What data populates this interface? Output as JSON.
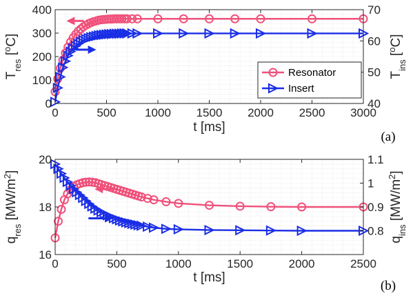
{
  "colors": {
    "resonator": "#f0507a",
    "insert": "#1a2ee6",
    "axis": "#262626",
    "grid": "#dcdcdc"
  },
  "chart_data": [
    {
      "id": "a",
      "type": "line",
      "panel_label": "(a)",
      "xlabel": "t [ms]",
      "ylabel_left": {
        "main": "T",
        "sub": "res",
        "unit": " [",
        "sup": "o",
        "end": "C]"
      },
      "ylabel_right": {
        "main": "T",
        "sub": "ins",
        "unit": " [",
        "sup": "o",
        "end": "C]"
      },
      "xlim": [
        0,
        3000
      ],
      "ylim_left": [
        0,
        400
      ],
      "ylim_right": [
        40,
        70
      ],
      "xticks": [
        "0",
        "500",
        "1000",
        "1500",
        "2000",
        "2500",
        "3000"
      ],
      "xtick_values": [
        0,
        500,
        1000,
        1500,
        2000,
        2500,
        3000
      ],
      "yticks_left": [
        "0",
        "100",
        "200",
        "300",
        "400"
      ],
      "ytick_values_left": [
        0,
        100,
        200,
        300,
        400
      ],
      "yticks_right": [
        "40",
        "50",
        "60",
        "70"
      ],
      "ytick_values_right": [
        40,
        50,
        60,
        70
      ],
      "grid": true,
      "legend": {
        "placement": "right",
        "entries": [
          "Resonator",
          "Insert"
        ]
      },
      "series": [
        {
          "name": "Resonator",
          "axis": "left",
          "marker": "circle",
          "x": [
            0,
            25,
            50,
            75,
            100,
            125,
            150,
            175,
            200,
            225,
            250,
            275,
            300,
            325,
            350,
            375,
            400,
            425,
            450,
            475,
            500,
            525,
            550,
            575,
            600,
            625,
            650,
            675,
            700,
            750,
            800,
            1000,
            1250,
            1500,
            1750,
            2000,
            2500,
            3000
          ],
          "y": [
            50,
            105,
            150,
            185,
            215,
            240,
            262,
            280,
            295,
            308,
            318,
            327,
            334,
            340,
            345,
            349,
            352,
            355,
            357,
            358,
            359,
            360,
            360,
            361,
            361,
            361,
            361,
            361,
            361,
            361,
            361,
            361,
            361,
            361,
            361,
            361,
            361,
            361
          ]
        },
        {
          "name": "Insert",
          "axis": "right",
          "marker": "triangle-right",
          "x": [
            0,
            25,
            50,
            75,
            100,
            125,
            150,
            175,
            200,
            225,
            250,
            275,
            300,
            325,
            350,
            375,
            400,
            425,
            450,
            475,
            500,
            525,
            550,
            575,
            600,
            625,
            650,
            675,
            700,
            750,
            800,
            1000,
            1250,
            1500,
            1750,
            2000,
            2500,
            3000
          ],
          "y": [
            40.5,
            45,
            48.5,
            51.5,
            53.5,
            55.3,
            56.6,
            57.6,
            58.4,
            59.1,
            59.7,
            60.2,
            60.6,
            60.9,
            61.2,
            61.4,
            61.6,
            61.8,
            61.9,
            62,
            62.1,
            62.2,
            62.2,
            62.3,
            62.3,
            62.3,
            62.4,
            62.4,
            62.4,
            62.4,
            62.4,
            62.4,
            62.4,
            62.4,
            62.4,
            62.4,
            62.4,
            62.4
          ]
        }
      ],
      "arrows": [
        {
          "series": "Resonator",
          "direction": "left",
          "x_from": 280,
          "x_to": 110,
          "y": 352,
          "axis": "left"
        },
        {
          "series": "Insert",
          "direction": "right",
          "x_from": 200,
          "x_to": 400,
          "y": 57.2,
          "axis": "right"
        }
      ]
    },
    {
      "id": "b",
      "type": "line",
      "panel_label": "(b)",
      "xlabel": "t [ms]",
      "ylabel_left": {
        "main": "q",
        "sub": "res",
        "unit": " [MW/m",
        "sup": "2",
        "end": "]"
      },
      "ylabel_right": {
        "main": "q",
        "sub": "ins",
        "unit": " [MW/m",
        "sup": "2",
        "end": "]"
      },
      "xlim": [
        0,
        2500
      ],
      "ylim_left": [
        16,
        20
      ],
      "ylim_right": [
        0.7,
        1.1
      ],
      "xticks": [
        "0",
        "500",
        "1000",
        "1500",
        "2000",
        "2500"
      ],
      "xtick_values": [
        0,
        500,
        1000,
        1500,
        2000,
        2500
      ],
      "yticks_left": [
        "16",
        "18",
        "20"
      ],
      "ytick_values_left": [
        16,
        18,
        20
      ],
      "yticks_right": [
        "0.8",
        "0.9",
        "1",
        "1.1"
      ],
      "ytick_values_right": [
        0.8,
        0.9,
        1.0,
        1.1
      ],
      "grid": true,
      "series": [
        {
          "name": "Resonator",
          "axis": "left",
          "marker": "circle",
          "x": [
            0,
            25,
            50,
            75,
            100,
            125,
            150,
            175,
            200,
            225,
            250,
            275,
            300,
            325,
            350,
            375,
            400,
            425,
            450,
            475,
            500,
            525,
            550,
            575,
            600,
            625,
            650,
            675,
            700,
            750,
            800,
            900,
            1000,
            1250,
            1500,
            1750,
            2000,
            2500
          ],
          "y": [
            16.7,
            17.4,
            17.9,
            18.3,
            18.55,
            18.72,
            18.85,
            18.93,
            18.98,
            19.02,
            19.04,
            19.05,
            19.04,
            19.02,
            18.98,
            18.94,
            18.9,
            18.86,
            18.82,
            18.78,
            18.74,
            18.7,
            18.66,
            18.62,
            18.58,
            18.54,
            18.5,
            18.46,
            18.42,
            18.36,
            18.3,
            18.22,
            18.15,
            18.07,
            18.03,
            18.01,
            18.0,
            18.0
          ]
        },
        {
          "name": "Insert",
          "axis": "right",
          "marker": "triangle-right",
          "x": [
            0,
            25,
            50,
            75,
            100,
            125,
            150,
            175,
            200,
            225,
            250,
            275,
            300,
            325,
            350,
            375,
            400,
            425,
            450,
            475,
            500,
            525,
            550,
            575,
            600,
            625,
            650,
            675,
            700,
            750,
            800,
            900,
            1000,
            1250,
            1500,
            1750,
            2000,
            2500
          ],
          "y": [
            1.08,
            1.06,
            1.04,
            1.022,
            1.005,
            0.99,
            0.975,
            0.962,
            0.95,
            0.938,
            0.925,
            0.913,
            0.902,
            0.893,
            0.885,
            0.878,
            0.871,
            0.865,
            0.859,
            0.853,
            0.848,
            0.843,
            0.839,
            0.835,
            0.832,
            0.829,
            0.826,
            0.823,
            0.821,
            0.817,
            0.813,
            0.808,
            0.806,
            0.803,
            0.802,
            0.801,
            0.8,
            0.8
          ]
        }
      ],
      "arrows": [
        {
          "series": "Resonator",
          "direction": "left",
          "x_from": 500,
          "x_to": 320,
          "y": 18.75,
          "axis": "left"
        },
        {
          "series": "Insert",
          "direction": "right",
          "x_from": 270,
          "x_to": 470,
          "y": 0.852,
          "axis": "right"
        }
      ]
    }
  ]
}
